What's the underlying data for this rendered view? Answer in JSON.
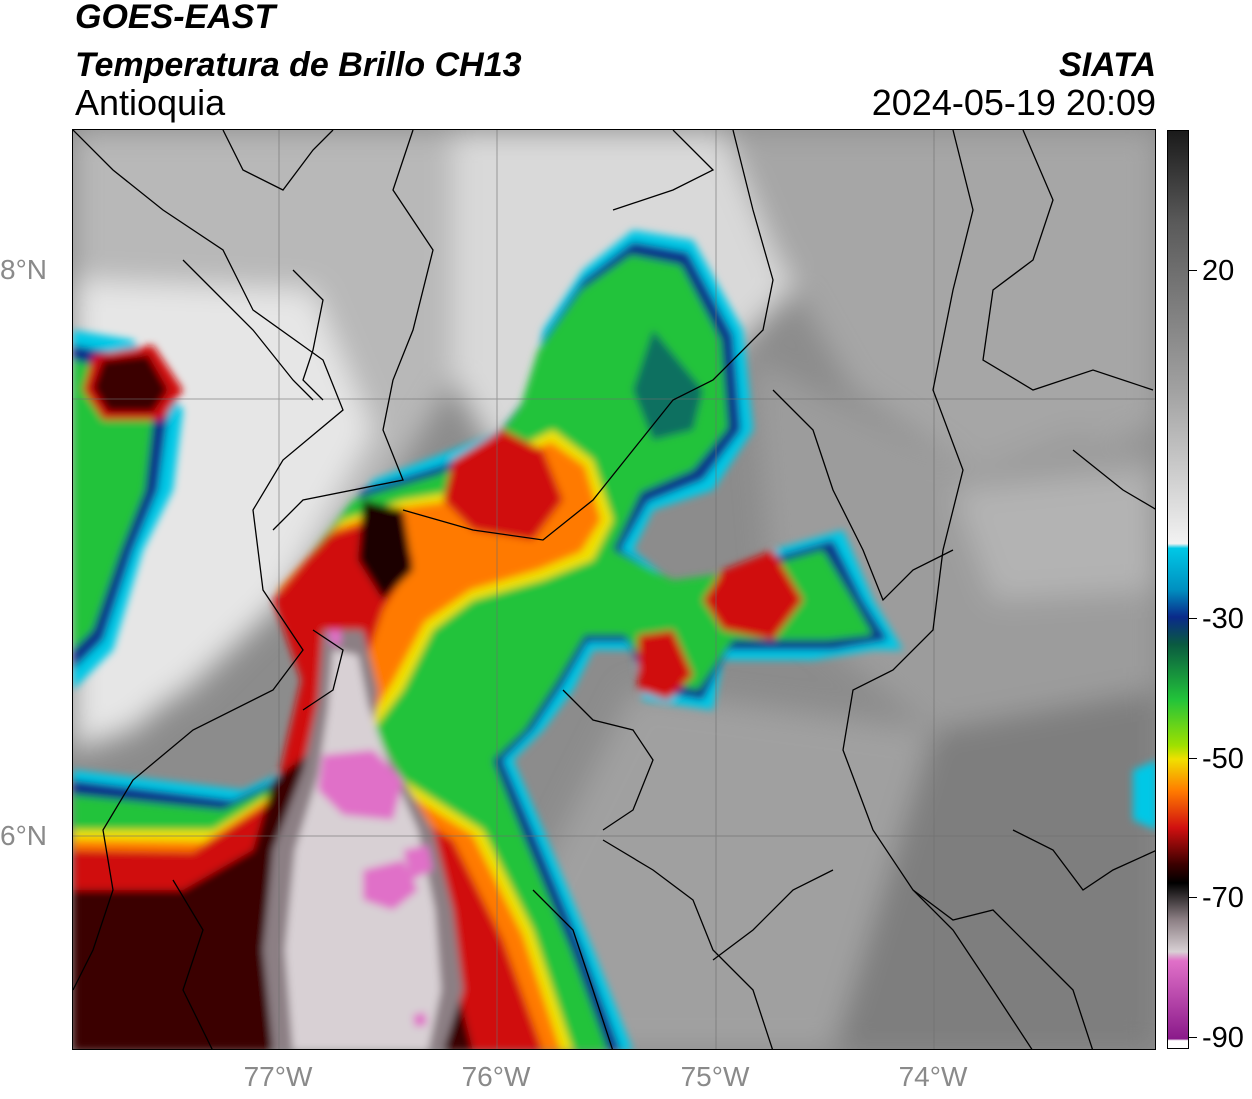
{
  "header": {
    "satellite": "GOES-EAST",
    "product": "Temperatura de Brillo CH13",
    "region": "Antioquia",
    "organization": "SIATA",
    "datetime": "2024-05-19 20:09"
  },
  "map": {
    "lat_ticks": [
      "8°N",
      "6°N"
    ],
    "lon_ticks": [
      "77°W",
      "76°W",
      "75°W",
      "74°W"
    ]
  },
  "colorbar": {
    "labels": [
      "20",
      "-30",
      "-50",
      "-70",
      "-90"
    ],
    "colors": {
      "warm": "#1a1a1a",
      "neutral": "#f2f2f2",
      "cyan": "#00c8e6",
      "blue": "#0a2a8a",
      "green": "#22c33a",
      "yellow": "#f0e000",
      "orange": "#ff7a00",
      "red": "#d01010",
      "darkred": "#3a0000",
      "gray": "#8c7f84",
      "pink": "#e070c8",
      "purple": "#8a1a8a"
    }
  }
}
